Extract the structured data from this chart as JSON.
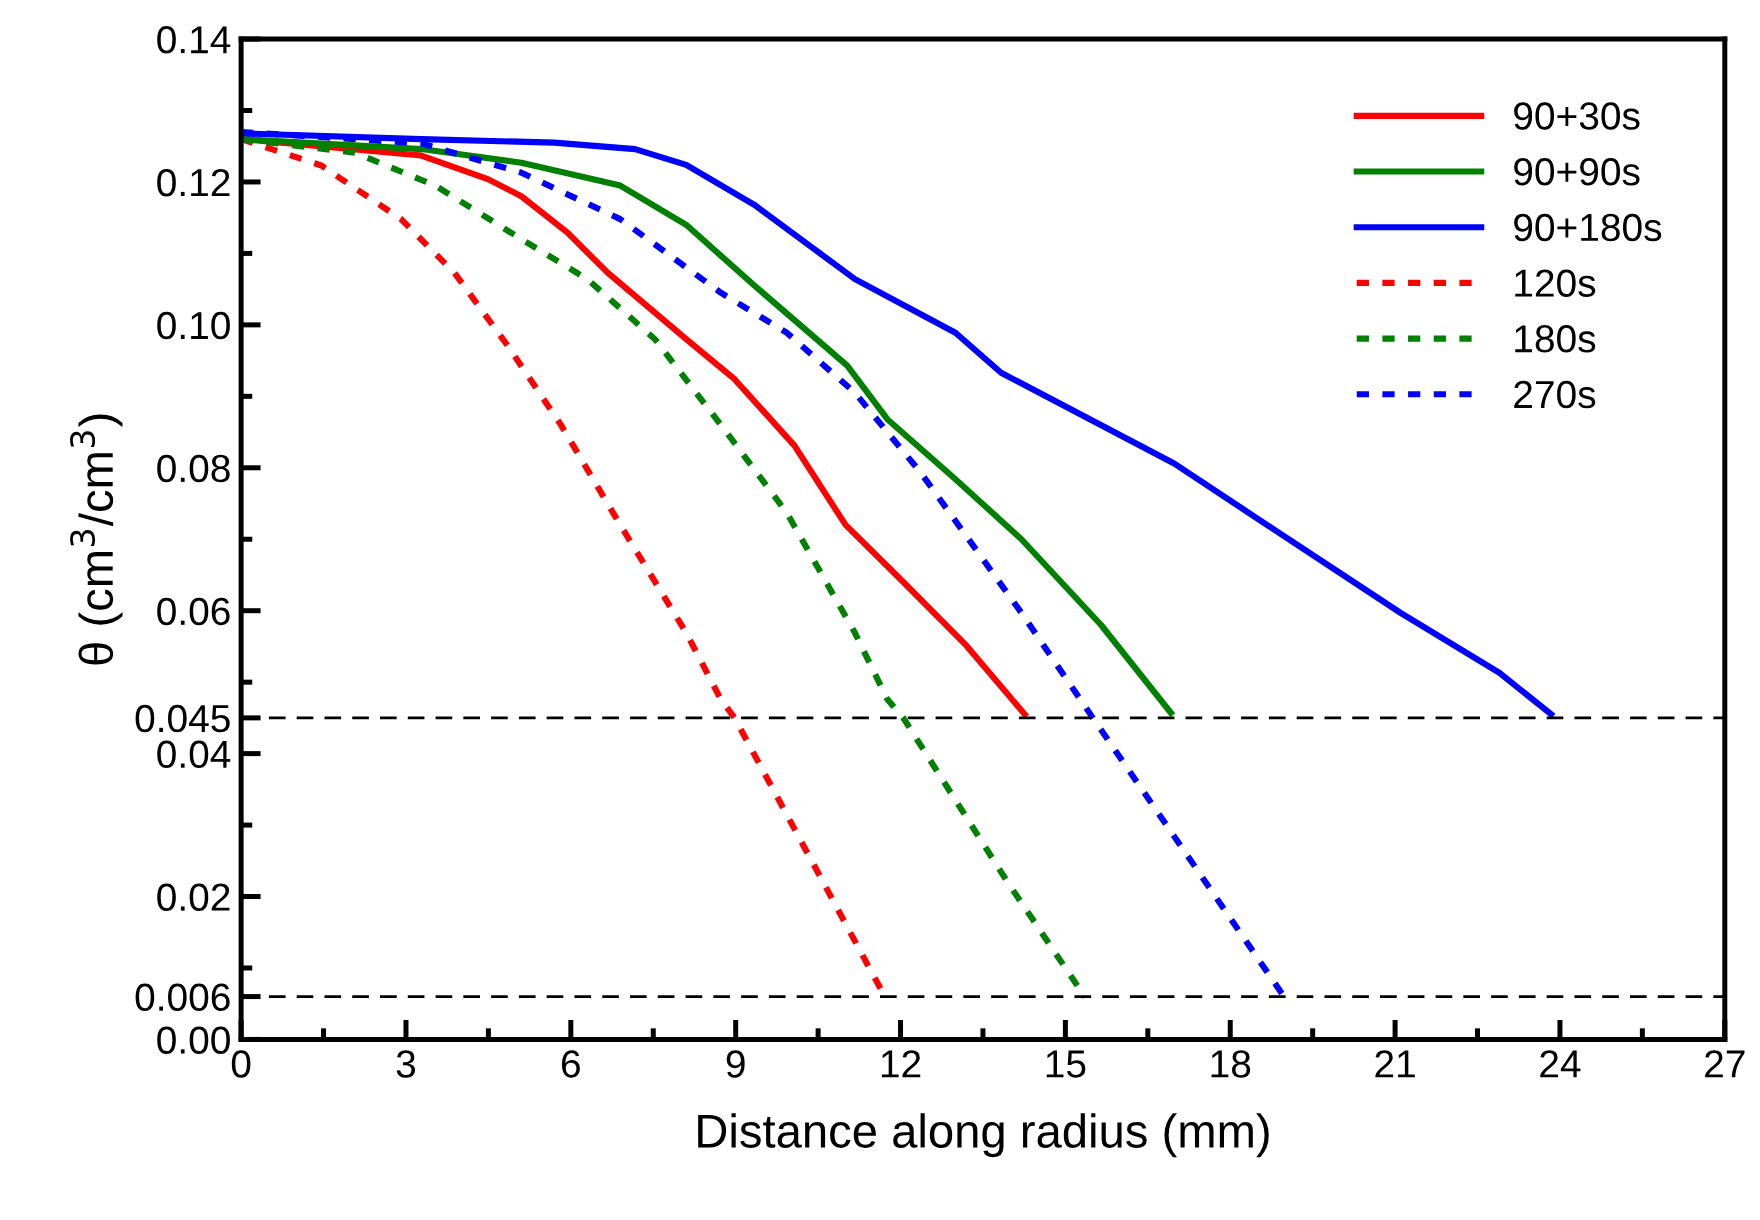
{
  "chart_data": {
    "type": "line",
    "xlabel": "Distance along radius (mm)",
    "ylabel": "θ (cm$^{3}$/cm$^{3}$)",
    "xlim": [
      0,
      27
    ],
    "ylim": [
      0,
      0.14
    ],
    "xticks": [
      0,
      {
        "value": 1.5,
        "label": null
      },
      3,
      {
        "value": 4.5,
        "label": null
      },
      6,
      {
        "value": 7.5,
        "label": null
      },
      9,
      {
        "value": 10.5,
        "label": null
      },
      12,
      {
        "value": 13.5,
        "label": null
      },
      15,
      {
        "value": 16.5,
        "label": null
      },
      18,
      {
        "value": 19.5,
        "label": null
      },
      21,
      {
        "value": 22.5,
        "label": null
      },
      24,
      {
        "value": 25.5,
        "label": null
      },
      27
    ],
    "yticks": [
      {
        "value": 0,
        "label": "0.00"
      },
      {
        "value": 0.006,
        "label": "0.006"
      },
      {
        "value": 0.01,
        "label": null
      },
      {
        "value": 0.02,
        "label": "0.02"
      },
      {
        "value": 0.03,
        "label": null
      },
      {
        "value": 0.04,
        "label": "0.04"
      },
      {
        "value": 0.045,
        "label": "0.045"
      },
      {
        "value": 0.05,
        "label": null
      },
      {
        "value": 0.06,
        "label": "0.06"
      },
      {
        "value": 0.07,
        "label": null
      },
      {
        "value": 0.08,
        "label": "0.08"
      },
      {
        "value": 0.09,
        "label": null
      },
      {
        "value": 0.1,
        "label": "0.10"
      },
      {
        "value": 0.11,
        "label": null
      },
      {
        "value": 0.12,
        "label": "0.12"
      },
      {
        "value": 0.13,
        "label": null
      },
      {
        "value": 0.14,
        "label": "0.14"
      }
    ],
    "grid": false,
    "legend": "top right",
    "marker": "none",
    "ref_lines": [
      {
        "axis": "y",
        "value": 0.045,
        "label": null,
        "color": "#000000",
        "line_style": "dashed"
      },
      {
        "axis": "y",
        "value": 0.006,
        "label": null,
        "color": "#000000",
        "line_style": "dashed"
      }
    ],
    "series": [
      {
        "name": "90+30s",
        "color": "#ff0000",
        "line_style": "solid",
        "x": [
          0,
          3.28,
          4.49,
          5.1,
          5.94,
          6.67,
          8.1,
          8.98,
          10.07,
          11.0,
          12.0,
          13.2,
          14.26
        ],
        "values": [
          0.126,
          0.1237,
          0.1204,
          0.118,
          0.1129,
          0.1073,
          0.098,
          0.0924,
          0.0831,
          0.072,
          0.0644,
          0.0551,
          0.0455
        ]
      },
      {
        "name": "90+90s",
        "color": "#008000",
        "line_style": "solid",
        "x": [
          0,
          3.28,
          5.1,
          6.9,
          8.1,
          9.34,
          11.03,
          11.76,
          13.0,
          14.2,
          15.65,
          16.92
        ],
        "values": [
          0.126,
          0.1246,
          0.1227,
          0.1195,
          0.114,
          0.1055,
          0.0943,
          0.0868,
          0.0784,
          0.07,
          0.058,
          0.0457
        ]
      },
      {
        "name": "90+180s",
        "color": "#0000ff",
        "line_style": "solid",
        "x": [
          0,
          3.28,
          5.7,
          7.17,
          8.1,
          9.34,
          11.17,
          13.0,
          13.83,
          16.98,
          18.67,
          21.1,
          22.9,
          23.84
        ],
        "values": [
          0.1268,
          0.126,
          0.1255,
          0.1246,
          0.1224,
          0.1168,
          0.1064,
          0.0989,
          0.0933,
          0.0806,
          0.072,
          0.0597,
          0.0513,
          0.0455
        ]
      },
      {
        "name": "120s",
        "color": "#ff0000",
        "line_style": "dotted",
        "x": [
          0,
          1.46,
          2.91,
          3.88,
          4.85,
          5.82,
          6.9,
          8.1,
          8.73,
          8.98,
          11.7
        ],
        "values": [
          0.126,
          0.1223,
          0.1148,
          0.1073,
          0.0971,
          0.086,
          0.072,
          0.0569,
          0.0476,
          0.045,
          0.0062
        ]
      },
      {
        "name": "180s",
        "color": "#008000",
        "line_style": "dotted",
        "x": [
          0,
          2.07,
          3.53,
          5.1,
          6.3,
          7.53,
          8.84,
          9.93,
          11.17,
          11.76,
          12.05,
          13.94,
          15.36
        ],
        "values": [
          0.126,
          0.1241,
          0.1195,
          0.112,
          0.1064,
          0.098,
          0.0849,
          0.0737,
          0.0569,
          0.0476,
          0.045,
          0.0221,
          0.0059
        ]
      },
      {
        "name": "270s",
        "color": "#0000ff",
        "line_style": "dotted",
        "x": [
          0,
          3.28,
          5.1,
          6.9,
          8.73,
          9.93,
          11.17,
          12.37,
          14.2,
          15.5,
          16.92,
          18.96
        ],
        "values": [
          0.127,
          0.1254,
          0.1213,
          0.1148,
          0.1045,
          0.0989,
          0.0905,
          0.0793,
          0.0597,
          0.045,
          0.0291,
          0.0062
        ]
      }
    ]
  }
}
